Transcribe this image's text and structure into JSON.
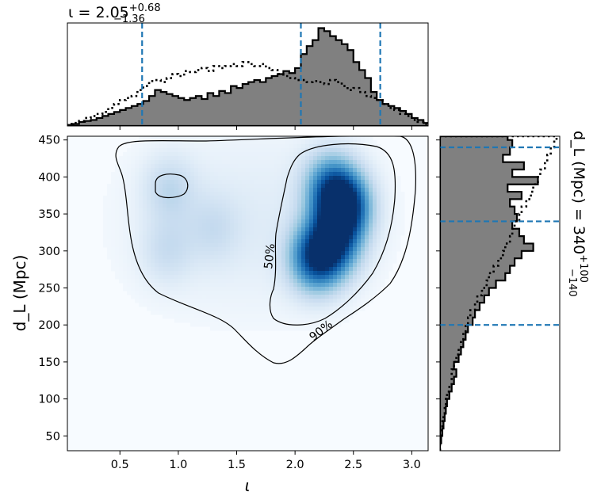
{
  "chart_data": {
    "type": "heatmap",
    "xlabel": "ι",
    "ylabel": "d_L (Mpc)",
    "xlim": [
      0.05,
      3.14
    ],
    "ylim": [
      30,
      455
    ],
    "xticks": [
      "0.5",
      "1.0",
      "1.5",
      "2.0",
      "2.5",
      "3.0"
    ],
    "yticks": [
      "50",
      "100",
      "150",
      "200",
      "250",
      "300",
      "350",
      "400",
      "450"
    ],
    "top_title": {
      "var": "ι",
      "median": "2.05",
      "plus": "+0.68",
      "minus": "−1.36"
    },
    "right_title": {
      "var": "d_L (Mpc)",
      "median": "340",
      "plus": "+100",
      "minus": "−140"
    },
    "iota_quantiles": [
      0.69,
      2.05,
      2.73
    ],
    "dl_quantiles": [
      200,
      340,
      440
    ],
    "contours": [
      {
        "level": "50%",
        "label": "50%"
      },
      {
        "level": "90%",
        "label": "90%"
      }
    ],
    "density_peaks": [
      {
        "x": 2.42,
        "y": 360,
        "weight": 1.0
      },
      {
        "x": 2.18,
        "y": 290,
        "weight": 0.85
      },
      {
        "x": 2.35,
        "y": 310,
        "weight": 0.6
      },
      {
        "x": 2.3,
        "y": 390,
        "weight": 0.55
      },
      {
        "x": 0.92,
        "y": 385,
        "weight": 0.22
      },
      {
        "x": 0.9,
        "y": 300,
        "weight": 0.18
      },
      {
        "x": 1.3,
        "y": 330,
        "weight": 0.15
      }
    ],
    "iota_histogram": {
      "bins": [
        0.05,
        0.1,
        0.15,
        0.2,
        0.25,
        0.3,
        0.35,
        0.4,
        0.45,
        0.5,
        0.55,
        0.6,
        0.65,
        0.7,
        0.75,
        0.8,
        0.85,
        0.9,
        0.95,
        1.0,
        1.05,
        1.1,
        1.15,
        1.2,
        1.25,
        1.3,
        1.35,
        1.4,
        1.45,
        1.5,
        1.55,
        1.6,
        1.65,
        1.7,
        1.75,
        1.8,
        1.85,
        1.9,
        1.95,
        2.0,
        2.05,
        2.1,
        2.15,
        2.2,
        2.25,
        2.3,
        2.35,
        2.4,
        2.45,
        2.5,
        2.55,
        2.6,
        2.65,
        2.7,
        2.75,
        2.8,
        2.85,
        2.9,
        2.95,
        3.0,
        3.05,
        3.1,
        3.15
      ],
      "filled": [
        0.01,
        0.02,
        0.04,
        0.05,
        0.06,
        0.08,
        0.1,
        0.12,
        0.14,
        0.16,
        0.18,
        0.2,
        0.22,
        0.25,
        0.3,
        0.36,
        0.34,
        0.32,
        0.3,
        0.28,
        0.26,
        0.28,
        0.3,
        0.27,
        0.33,
        0.3,
        0.35,
        0.33,
        0.4,
        0.38,
        0.42,
        0.44,
        0.46,
        0.44,
        0.48,
        0.5,
        0.52,
        0.55,
        0.53,
        0.58,
        0.72,
        0.8,
        0.86,
        0.98,
        0.95,
        0.9,
        0.86,
        0.82,
        0.76,
        0.64,
        0.56,
        0.48,
        0.34,
        0.26,
        0.22,
        0.2,
        0.18,
        0.15,
        0.12,
        0.08,
        0.06,
        0.03
      ],
      "prior": [
        0.02,
        0.03,
        0.05,
        0.08,
        0.1,
        0.12,
        0.14,
        0.18,
        0.22,
        0.26,
        0.28,
        0.3,
        0.36,
        0.4,
        0.45,
        0.46,
        0.44,
        0.48,
        0.52,
        0.5,
        0.55,
        0.54,
        0.56,
        0.58,
        0.55,
        0.6,
        0.58,
        0.6,
        0.62,
        0.6,
        0.64,
        0.62,
        0.6,
        0.62,
        0.58,
        0.56,
        0.52,
        0.5,
        0.48,
        0.46,
        0.46,
        0.44,
        0.45,
        0.44,
        0.42,
        0.46,
        0.44,
        0.4,
        0.36,
        0.38,
        0.34,
        0.3,
        0.28,
        0.26,
        0.22,
        0.18,
        0.16,
        0.12,
        0.1,
        0.06,
        0.04,
        0.02
      ]
    },
    "dl_histogram": {
      "bins": [
        30,
        40,
        50,
        60,
        70,
        80,
        90,
        100,
        110,
        120,
        130,
        140,
        150,
        160,
        170,
        180,
        190,
        200,
        210,
        220,
        230,
        240,
        250,
        260,
        270,
        280,
        290,
        300,
        310,
        320,
        330,
        340,
        350,
        360,
        370,
        380,
        390,
        400,
        410,
        420,
        430,
        440,
        450,
        455
      ],
      "filled": [
        0.0,
        0.01,
        0.02,
        0.03,
        0.04,
        0.05,
        0.06,
        0.08,
        0.1,
        0.12,
        0.14,
        0.12,
        0.16,
        0.18,
        0.2,
        0.22,
        0.24,
        0.28,
        0.3,
        0.34,
        0.38,
        0.42,
        0.48,
        0.56,
        0.6,
        0.64,
        0.7,
        0.8,
        0.72,
        0.68,
        0.62,
        0.66,
        0.64,
        0.6,
        0.7,
        0.58,
        0.84,
        0.62,
        0.72,
        0.54,
        0.6,
        0.62,
        0.58
      ],
      "prior": [
        0.0,
        0.0,
        0.01,
        0.02,
        0.03,
        0.04,
        0.05,
        0.06,
        0.08,
        0.1,
        0.1,
        0.12,
        0.14,
        0.16,
        0.18,
        0.2,
        0.22,
        0.24,
        0.26,
        0.3,
        0.32,
        0.36,
        0.4,
        0.42,
        0.46,
        0.5,
        0.54,
        0.56,
        0.6,
        0.62,
        0.64,
        0.68,
        0.7,
        0.74,
        0.78,
        0.8,
        0.84,
        0.86,
        0.9,
        0.92,
        0.95,
        0.98,
        1.0
      ]
    }
  }
}
